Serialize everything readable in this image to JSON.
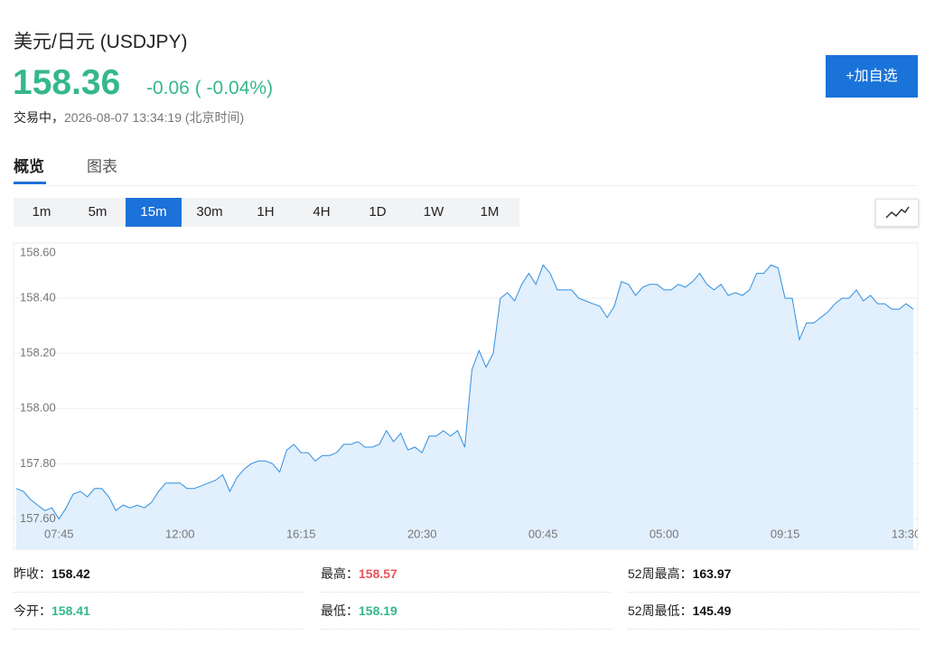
{
  "header": {
    "title": "美元/日元",
    "symbol": "(USDJPY)",
    "price": "158.36",
    "change": "-0.06",
    "change_pct": "( -0.04%)",
    "status": "交易中，",
    "time": "2026-08-07 13:34:19",
    "timezone": "(北京时间)",
    "button": "+加自选"
  },
  "tabs": [
    "概览",
    "图表"
  ],
  "intervals": [
    "1m",
    "5m",
    "15m",
    "30m",
    "1H",
    "4H",
    "1D",
    "1W",
    "1M"
  ],
  "chart_data": {
    "type": "line",
    "area": true,
    "color": "#2f8fe0",
    "fill": "#e2effc",
    "grid": true,
    "categories": [
      null,
      null,
      null,
      null,
      null,
      null,
      "07:45",
      null,
      null,
      null,
      null,
      null,
      null,
      null,
      null,
      null,
      null,
      null,
      null,
      null,
      null,
      null,
      null,
      "12:00",
      null,
      null,
      null,
      null,
      null,
      null,
      null,
      null,
      null,
      null,
      null,
      null,
      null,
      null,
      null,
      null,
      "16:15",
      null,
      null,
      null,
      null,
      null,
      null,
      null,
      null,
      null,
      null,
      null,
      null,
      null,
      null,
      null,
      null,
      "20:30",
      null,
      null,
      null,
      null,
      null,
      null,
      null,
      null,
      null,
      null,
      null,
      null,
      null,
      null,
      null,
      null,
      "00:45",
      null,
      null,
      null,
      null,
      null,
      null,
      null,
      null,
      null,
      null,
      null,
      null,
      null,
      null,
      null,
      null,
      "05:00",
      null,
      null,
      null,
      null,
      null,
      null,
      null,
      null,
      null,
      null,
      null,
      null,
      null,
      null,
      null,
      null,
      "09:15",
      null,
      null,
      null,
      null,
      null,
      null,
      null,
      null,
      null,
      null,
      null,
      null,
      null,
      null,
      null,
      null,
      "13:30",
      null
    ],
    "values": [
      157.71,
      157.7,
      157.67,
      157.65,
      157.63,
      157.64,
      157.6,
      157.64,
      157.69,
      157.7,
      157.68,
      157.71,
      157.71,
      157.68,
      157.63,
      157.65,
      157.64,
      157.65,
      157.64,
      157.66,
      157.7,
      157.73,
      157.73,
      157.73,
      157.71,
      157.71,
      157.72,
      157.73,
      157.74,
      157.76,
      157.7,
      157.75,
      157.78,
      157.8,
      157.81,
      157.81,
      157.8,
      157.77,
      157.85,
      157.87,
      157.84,
      157.84,
      157.81,
      157.83,
      157.83,
      157.84,
      157.87,
      157.87,
      157.88,
      157.86,
      157.86,
      157.87,
      157.92,
      157.88,
      157.91,
      157.85,
      157.86,
      157.84,
      157.9,
      157.9,
      157.92,
      157.9,
      157.92,
      157.86,
      158.14,
      158.21,
      158.15,
      158.2,
      158.4,
      158.42,
      158.39,
      158.45,
      158.49,
      158.45,
      158.52,
      158.49,
      158.43,
      158.43,
      158.43,
      158.4,
      158.39,
      158.38,
      158.37,
      158.33,
      158.37,
      158.46,
      158.45,
      158.41,
      158.44,
      158.45,
      158.45,
      158.43,
      158.43,
      158.45,
      158.44,
      158.46,
      158.49,
      158.45,
      158.43,
      158.45,
      158.41,
      158.42,
      158.41,
      158.43,
      158.49,
      158.49,
      158.52,
      158.51,
      158.4,
      158.4,
      158.25,
      158.31,
      158.31,
      158.33,
      158.35,
      158.38,
      158.4,
      158.4,
      158.43,
      158.39,
      158.41,
      158.38,
      158.38,
      158.36,
      158.36,
      158.38,
      158.36
    ],
    "ylim": [
      157.49,
      158.6
    ],
    "yticks": [
      {
        "value": 157.6,
        "label": "157.60"
      },
      {
        "value": 157.8,
        "label": "157.80"
      },
      {
        "value": 158.0,
        "label": "158.00"
      },
      {
        "value": 158.2,
        "label": "158.20"
      },
      {
        "value": 158.4,
        "label": "158.40"
      },
      {
        "value": 158.6,
        "label": "158.60"
      }
    ]
  },
  "stats": [
    [
      {
        "label": "昨收：",
        "value": "158.42",
        "color": "#111"
      },
      {
        "label": "最高：",
        "value": "158.57",
        "color": "#e8545a"
      },
      {
        "label": "52周最高：",
        "value": "163.97",
        "color": "#111"
      }
    ],
    [
      {
        "label": "今开：",
        "value": "158.41",
        "color": "#35b88a"
      },
      {
        "label": "最低：",
        "value": "158.19",
        "color": "#35b88a"
      },
      {
        "label": "52周最低：",
        "value": "145.49",
        "color": "#111"
      }
    ]
  ]
}
